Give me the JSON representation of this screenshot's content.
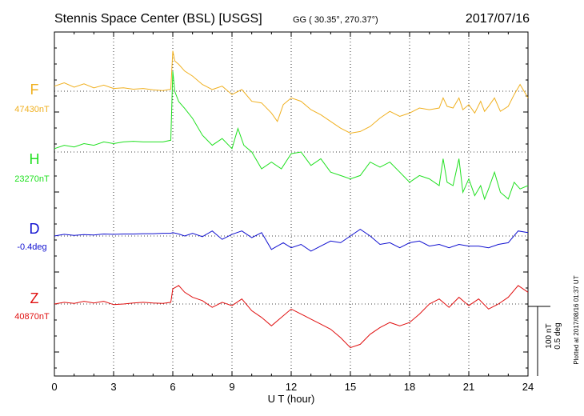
{
  "chart_data": {
    "type": "line",
    "title": "Stennis Space Center (BSL)  [USGS]",
    "coords": "GG ( 30.35°, 270.37°)",
    "date": "2017/07/16",
    "xlabel": "U T (hour)",
    "xlim": [
      0,
      24
    ],
    "xticks": [
      "0",
      "3",
      "6",
      "9",
      "12",
      "15",
      "18",
      "21",
      "24"
    ],
    "grid": true,
    "scale_label_1": "100 nT",
    "scale_label_2": "0.5 deg",
    "plotted_note": "Plotted at 2017/08/16 01:37 UT",
    "series": [
      {
        "name": "F",
        "baseline": "47430nT",
        "color": "#f0b020",
        "x": [
          0,
          0.5,
          1,
          1.5,
          2,
          2.5,
          3,
          3.5,
          4,
          4.5,
          5,
          5.5,
          5.9,
          6.0,
          6.1,
          6.3,
          6.6,
          7.0,
          7.5,
          8.0,
          8.5,
          9.0,
          9.5,
          10.0,
          10.5,
          11.0,
          11.3,
          11.6,
          12.0,
          12.5,
          13.0,
          13.5,
          14.0,
          14.5,
          15.0,
          15.5,
          16.0,
          16.5,
          17.0,
          17.5,
          18.0,
          18.5,
          19.0,
          19.5,
          19.7,
          19.9,
          20.2,
          20.5,
          20.7,
          21.0,
          21.3,
          21.6,
          21.8,
          22.0,
          22.3,
          22.6,
          23.0,
          23.3,
          23.6,
          24.0
        ],
        "values": [
          1.5,
          2.5,
          1.2,
          2.2,
          1.0,
          1.8,
          0.8,
          1.0,
          0.6,
          0.8,
          0.4,
          0.2,
          0.6,
          12.0,
          9.0,
          8.0,
          6.0,
          4.5,
          2.0,
          0.5,
          1.5,
          -1.0,
          0.5,
          -3.0,
          -3.5,
          -6.5,
          -9.0,
          -4.0,
          -2.0,
          -3.0,
          -5.5,
          -7.0,
          -9.0,
          -11.0,
          -12.5,
          -12.0,
          -10.5,
          -8.0,
          -6.0,
          -7.5,
          -6.5,
          -5.0,
          -5.5,
          -5.0,
          -2.0,
          -4.5,
          -5.0,
          -2.0,
          -5.5,
          -4.0,
          -6.5,
          -3.0,
          -6.0,
          -4.5,
          -2.0,
          -6.0,
          -4.5,
          -1.0,
          2.0,
          -2.0
        ]
      },
      {
        "name": "H",
        "baseline": "23270nT",
        "color": "#20e020",
        "x": [
          0,
          0.5,
          1,
          1.5,
          2,
          2.5,
          3,
          3.5,
          4,
          4.5,
          5,
          5.5,
          5.9,
          6.0,
          6.1,
          6.3,
          6.6,
          7.0,
          7.5,
          8.0,
          8.5,
          9.0,
          9.3,
          9.6,
          10.0,
          10.5,
          11.0,
          11.5,
          12.0,
          12.5,
          13.0,
          13.5,
          14.0,
          14.5,
          15.0,
          15.5,
          16.0,
          16.5,
          17.0,
          17.5,
          18.0,
          18.5,
          19.0,
          19.5,
          19.7,
          19.9,
          20.2,
          20.5,
          20.7,
          21.0,
          21.3,
          21.6,
          21.8,
          22.0,
          22.3,
          22.6,
          23.0,
          23.3,
          23.6,
          24.0
        ],
        "values": [
          1.0,
          2.0,
          1.5,
          2.5,
          2.0,
          3.0,
          2.5,
          3.0,
          3.2,
          3.0,
          3.0,
          3.0,
          3.5,
          24.0,
          18.0,
          15.0,
          13.0,
          10.0,
          5.0,
          2.0,
          4.0,
          1.0,
          7.0,
          2.0,
          0.0,
          -5.0,
          -3.0,
          -5.0,
          -0.5,
          0.0,
          -4.0,
          -2.0,
          -6.0,
          -7.0,
          -8.0,
          -7.0,
          -3.0,
          -4.5,
          -3.0,
          -6.0,
          -9.0,
          -7.0,
          -8.0,
          -10.0,
          -2.0,
          -9.0,
          -10.0,
          -2.0,
          -12.0,
          -8.0,
          -13.0,
          -10.0,
          -14.0,
          -11.0,
          -6.0,
          -12.0,
          -14.0,
          -9.0,
          -11.0,
          -10.0
        ]
      },
      {
        "name": "D",
        "baseline": "-0.4deg",
        "color": "#1010d0",
        "x": [
          0,
          0.5,
          1,
          1.5,
          2,
          2.5,
          3,
          3.5,
          4,
          4.5,
          5,
          5.5,
          5.9,
          6.0,
          6.3,
          6.6,
          7.0,
          7.5,
          8.0,
          8.5,
          9.0,
          9.5,
          10.0,
          10.5,
          11.0,
          11.3,
          11.6,
          12.0,
          12.5,
          13.0,
          13.5,
          14.0,
          14.5,
          15.0,
          15.5,
          16.0,
          16.5,
          17.0,
          17.5,
          18.0,
          18.5,
          19.0,
          19.5,
          20.0,
          20.5,
          21.0,
          21.5,
          22.0,
          22.5,
          23.0,
          23.5,
          24.0
        ],
        "values": [
          0.0,
          0.5,
          0.2,
          0.4,
          0.3,
          0.6,
          0.5,
          0.6,
          0.6,
          0.7,
          0.7,
          0.8,
          0.8,
          1.0,
          0.6,
          0.0,
          0.8,
          -0.2,
          1.5,
          -1.0,
          0.5,
          1.5,
          -0.5,
          1.0,
          -4.0,
          -3.0,
          -2.0,
          -3.5,
          -2.5,
          -4.5,
          -3.0,
          -1.5,
          -2.0,
          0.0,
          2.0,
          0.0,
          -2.5,
          -2.0,
          -3.5,
          -2.0,
          -1.5,
          -3.0,
          -2.5,
          -3.5,
          -2.5,
          -3.0,
          -3.0,
          -3.5,
          -2.5,
          -2.0,
          1.5,
          1.0
        ]
      },
      {
        "name": "Z",
        "baseline": "40870nT",
        "color": "#e01010",
        "x": [
          0,
          0.5,
          1,
          1.5,
          2,
          2.5,
          3,
          3.5,
          4,
          4.5,
          5,
          5.5,
          5.9,
          6.0,
          6.3,
          6.6,
          7.0,
          7.5,
          8.0,
          8.5,
          9.0,
          9.5,
          10.0,
          10.5,
          11.0,
          11.5,
          12.0,
          12.5,
          13.0,
          13.5,
          14.0,
          14.5,
          15.0,
          15.5,
          16.0,
          16.5,
          17.0,
          17.5,
          18.0,
          18.5,
          19.0,
          19.5,
          20.0,
          20.5,
          21.0,
          21.5,
          22.0,
          22.5,
          23.0,
          23.5,
          24.0
        ],
        "values": [
          0.0,
          0.5,
          0.2,
          0.8,
          0.3,
          0.8,
          -0.2,
          0.0,
          0.3,
          0.5,
          0.3,
          0.2,
          0.5,
          4.5,
          5.5,
          3.5,
          2.0,
          1.0,
          -1.0,
          0.5,
          -0.5,
          1.5,
          -2.0,
          -4.0,
          -6.5,
          -4.0,
          -1.5,
          -3.0,
          -4.5,
          -6.0,
          -7.5,
          -10.0,
          -13.0,
          -12.0,
          -9.0,
          -7.0,
          -5.5,
          -6.5,
          -5.5,
          -3.0,
          0.0,
          1.5,
          -1.0,
          2.0,
          -0.5,
          1.5,
          -1.5,
          0.0,
          2.0,
          5.5,
          3.5
        ]
      }
    ]
  }
}
